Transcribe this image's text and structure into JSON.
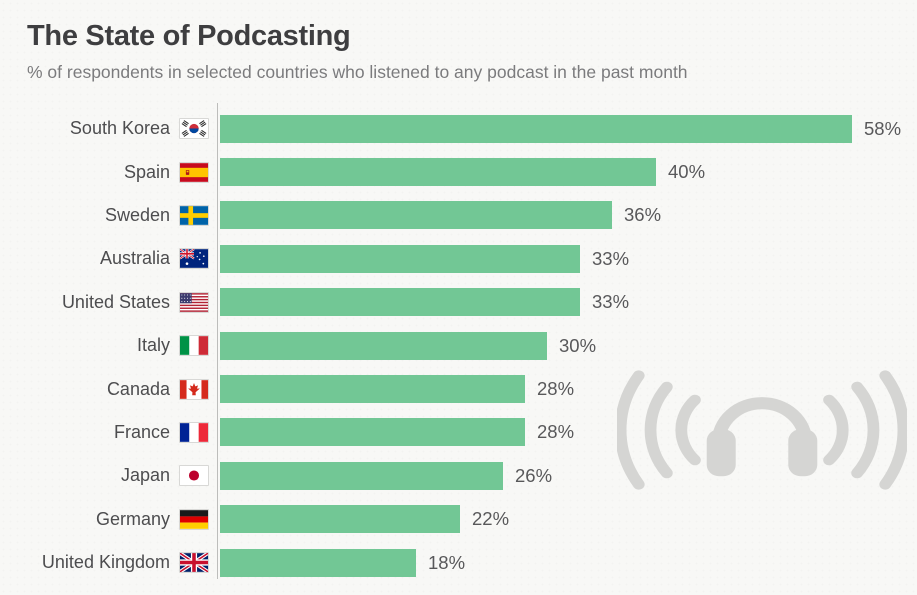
{
  "header": {
    "title": "The State of Podcasting",
    "subtitle": "% of respondents in selected countries who listened to any podcast in the past month"
  },
  "colors": {
    "background": "#f8f8f6",
    "bar": "#72c795",
    "title_text": "#3e3e40",
    "subtitle_text": "#7b7b7d",
    "label_text": "#4d4d4f",
    "value_text": "#58585a",
    "axis_line": "#bdbdbb",
    "watermark": "#d5d5d3"
  },
  "icons": {
    "watermark": "headphones-sound-waves-icon"
  },
  "chart_data": {
    "type": "bar",
    "orientation": "horizontal",
    "title": "The State of Podcasting",
    "subtitle": "% of respondents in selected countries who listened to any podcast in the past month",
    "xlabel": "",
    "ylabel": "",
    "xlim": [
      0,
      64
    ],
    "grid": false,
    "legend": false,
    "value_suffix": "%",
    "categories": [
      "South Korea",
      "Spain",
      "Sweden",
      "Australia",
      "United States",
      "Italy",
      "Canada",
      "France",
      "Japan",
      "Germany",
      "United Kingdom"
    ],
    "values": [
      58,
      40,
      36,
      33,
      33,
      30,
      28,
      28,
      26,
      22,
      18
    ],
    "rows": [
      {
        "country": "South Korea",
        "code": "kr",
        "flag_icon": "flag-south-korea-icon",
        "value": 58,
        "value_label": "58%"
      },
      {
        "country": "Spain",
        "code": "es",
        "flag_icon": "flag-spain-icon",
        "value": 40,
        "value_label": "40%"
      },
      {
        "country": "Sweden",
        "code": "se",
        "flag_icon": "flag-sweden-icon",
        "value": 36,
        "value_label": "36%"
      },
      {
        "country": "Australia",
        "code": "au",
        "flag_icon": "flag-australia-icon",
        "value": 33,
        "value_label": "33%"
      },
      {
        "country": "United States",
        "code": "us",
        "flag_icon": "flag-united-states-icon",
        "value": 33,
        "value_label": "33%"
      },
      {
        "country": "Italy",
        "code": "it",
        "flag_icon": "flag-italy-icon",
        "value": 30,
        "value_label": "30%"
      },
      {
        "country": "Canada",
        "code": "ca",
        "flag_icon": "flag-canada-icon",
        "value": 28,
        "value_label": "28%"
      },
      {
        "country": "France",
        "code": "fr",
        "flag_icon": "flag-france-icon",
        "value": 28,
        "value_label": "28%"
      },
      {
        "country": "Japan",
        "code": "jp",
        "flag_icon": "flag-japan-icon",
        "value": 26,
        "value_label": "26%"
      },
      {
        "country": "Germany",
        "code": "de",
        "flag_icon": "flag-germany-icon",
        "value": 22,
        "value_label": "22%"
      },
      {
        "country": "United Kingdom",
        "code": "gb",
        "flag_icon": "flag-united-kingdom-icon",
        "value": 18,
        "value_label": "18%"
      }
    ]
  }
}
